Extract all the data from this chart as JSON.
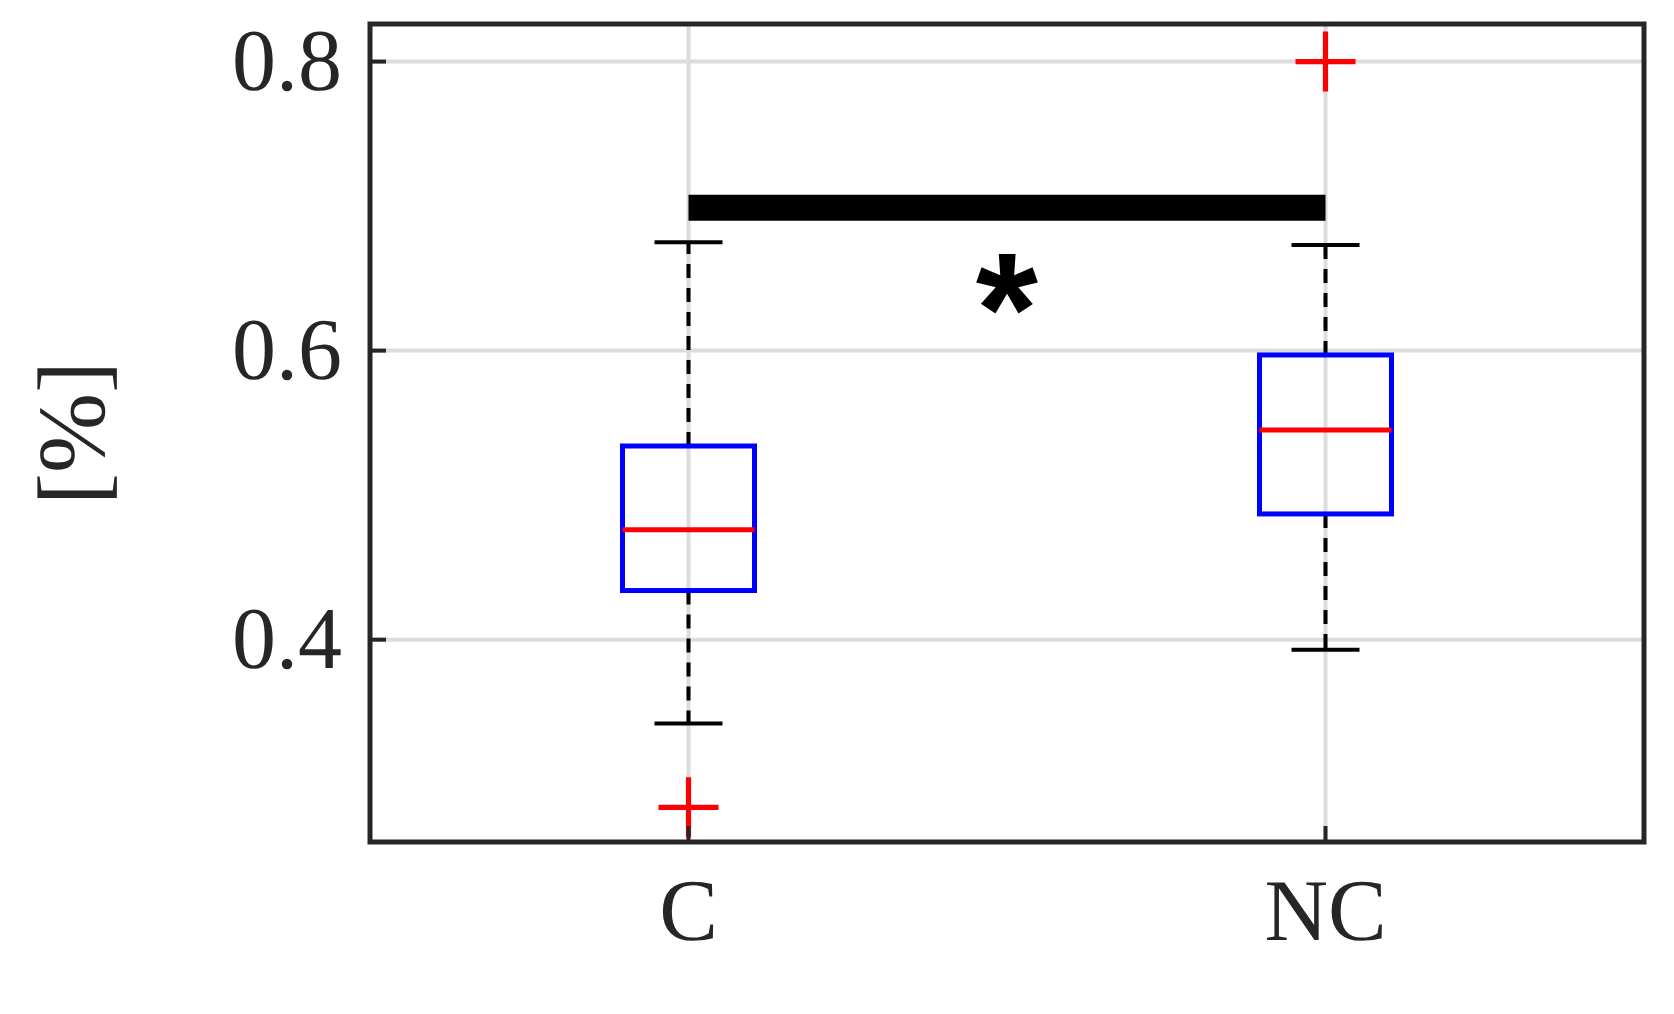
{
  "chart_data": {
    "type": "box",
    "ylabel": "[%]",
    "categories": [
      "C",
      "NC"
    ],
    "boxes": [
      {
        "low": 0.342,
        "q1": 0.434,
        "median": 0.476,
        "q3": 0.534,
        "high": 0.675,
        "outliers": [
          0.284
        ]
      },
      {
        "low": 0.393,
        "q1": 0.487,
        "median": 0.545,
        "q3": 0.597,
        "high": 0.673,
        "outliers": [
          0.8
        ]
      }
    ],
    "color": "#0000ff",
    "ylim": [
      0.26,
      0.826
    ],
    "yticks": [
      0.4,
      0.6,
      0.8
    ],
    "grid": true,
    "marker": "cross",
    "annotations": [
      "*"
    ]
  }
}
